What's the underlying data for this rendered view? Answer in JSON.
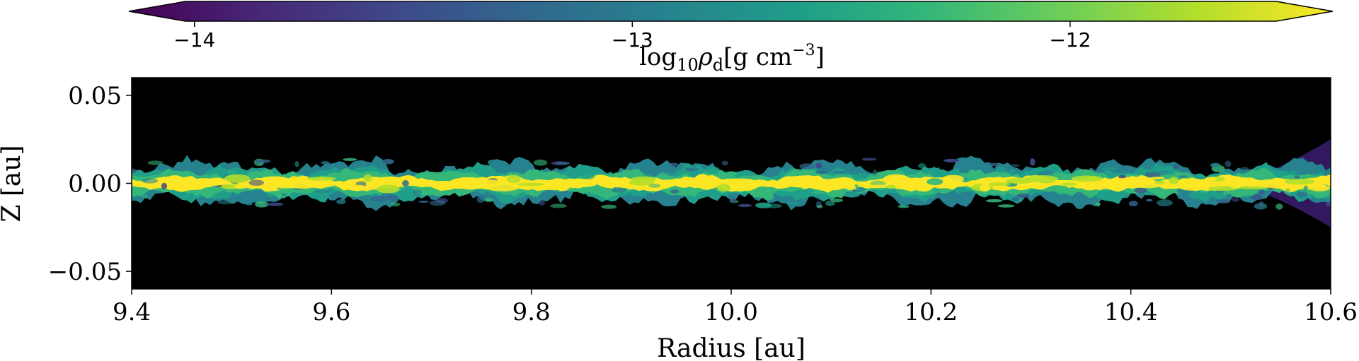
{
  "chart_data": {
    "type": "heatmap",
    "title": "",
    "xlabel": "Radius [au]",
    "ylabel": "Z [au]",
    "xlim": [
      9.4,
      10.6
    ],
    "ylim": [
      -0.06,
      0.06
    ],
    "xticks": [
      9.4,
      9.6,
      9.8,
      10.0,
      10.2,
      10.4,
      10.6
    ],
    "xtick_labels": [
      "9.4",
      "9.6",
      "9.8",
      "10.0",
      "10.2",
      "10.4",
      "10.6"
    ],
    "yticks": [
      0.05,
      0.0,
      -0.05
    ],
    "ytick_labels": [
      "0.05",
      "0.00",
      "−0.05"
    ],
    "background_color": "#000000",
    "colorbar": {
      "label_prefix": "log",
      "label_sub": "10",
      "label_rho": "ρ",
      "label_rho_sub": "d",
      "label_units": "[g cm",
      "label_exp": "−3",
      "label_close": "]",
      "colormap": "viridis",
      "extend": "both",
      "range": [
        -14.15,
        -11.4
      ],
      "ticks": [
        -14,
        -13,
        -12
      ],
      "tick_labels": [
        "−14",
        "−13",
        "−12"
      ],
      "colors": [
        "#440154",
        "#482878",
        "#3e4989",
        "#31688e",
        "#26828e",
        "#1f9e89",
        "#35b779",
        "#6ece58",
        "#b5de2b",
        "#fde725"
      ]
    },
    "features": {
      "layer_center_z": 0.0,
      "dense_core_half_thickness": 0.004,
      "turbulent_envelope_half_thickness": 0.012,
      "outer_edge_flaring_start_radius": 10.52,
      "outer_edge_max_half_thickness": 0.025
    }
  }
}
